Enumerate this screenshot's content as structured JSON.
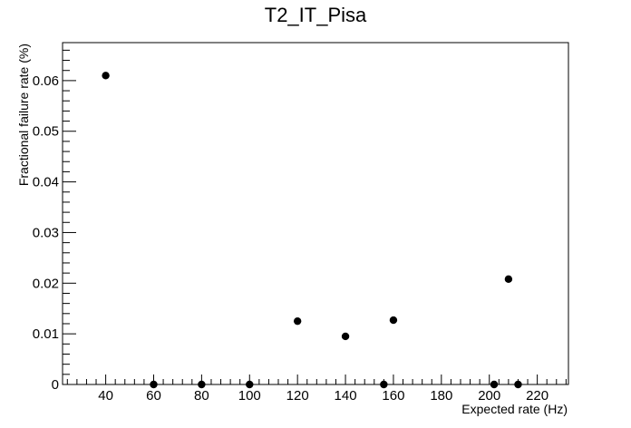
{
  "chart_data": {
    "type": "scatter",
    "title": "T2_IT_Pisa",
    "xlabel": "Expected rate (Hz)",
    "ylabel": "Fractional failure rate (%)",
    "xlim": [
      22,
      233
    ],
    "ylim": [
      0,
      0.0675
    ],
    "grid": false,
    "x_ticks": [
      40,
      60,
      80,
      100,
      120,
      140,
      160,
      180,
      200,
      220
    ],
    "x_tick_labels": [
      "40",
      "60",
      "80",
      "100",
      "120",
      "140",
      "160",
      "180",
      "200",
      "220"
    ],
    "y_ticks": [
      0,
      0.01,
      0.02,
      0.03,
      0.04,
      0.05,
      0.06
    ],
    "y_tick_labels": [
      "0",
      "0.01",
      "0.02",
      "0.03",
      "0.04",
      "0.05",
      "0.06"
    ],
    "marker_color": "#000000",
    "points": [
      {
        "x": 40,
        "y": 0.061
      },
      {
        "x": 60,
        "y": 0
      },
      {
        "x": 80,
        "y": 0
      },
      {
        "x": 100,
        "y": 0
      },
      {
        "x": 120,
        "y": 0.0125
      },
      {
        "x": 140,
        "y": 0.0095
      },
      {
        "x": 156,
        "y": 0
      },
      {
        "x": 160,
        "y": 0.0127
      },
      {
        "x": 202,
        "y": 0
      },
      {
        "x": 208,
        "y": 0.0208
      },
      {
        "x": 212,
        "y": 0
      }
    ]
  }
}
